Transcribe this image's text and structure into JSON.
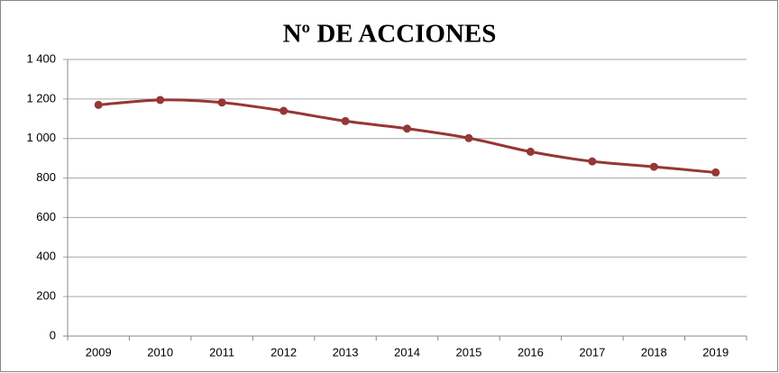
{
  "chart_data": {
    "type": "line",
    "title": "Nº DE ACCIONES",
    "categories": [
      "2009",
      "2010",
      "2011",
      "2012",
      "2013",
      "2014",
      "2015",
      "2016",
      "2017",
      "2018",
      "2019"
    ],
    "series": [
      {
        "name": "Nº de acciones",
        "color": "#953735",
        "values": [
          1170,
          1195,
          1182,
          1140,
          1088,
          1050,
          1002,
          933,
          884,
          857,
          828
        ]
      }
    ],
    "ylim": [
      0,
      1400
    ],
    "yticks": [
      0,
      200,
      400,
      600,
      800,
      {
        "value": 1000,
        "label": "1 000"
      },
      {
        "value": 1200,
        "label": "1 200"
      },
      {
        "value": 1400,
        "label": "1 400"
      }
    ],
    "grid": true,
    "smooth": true
  }
}
